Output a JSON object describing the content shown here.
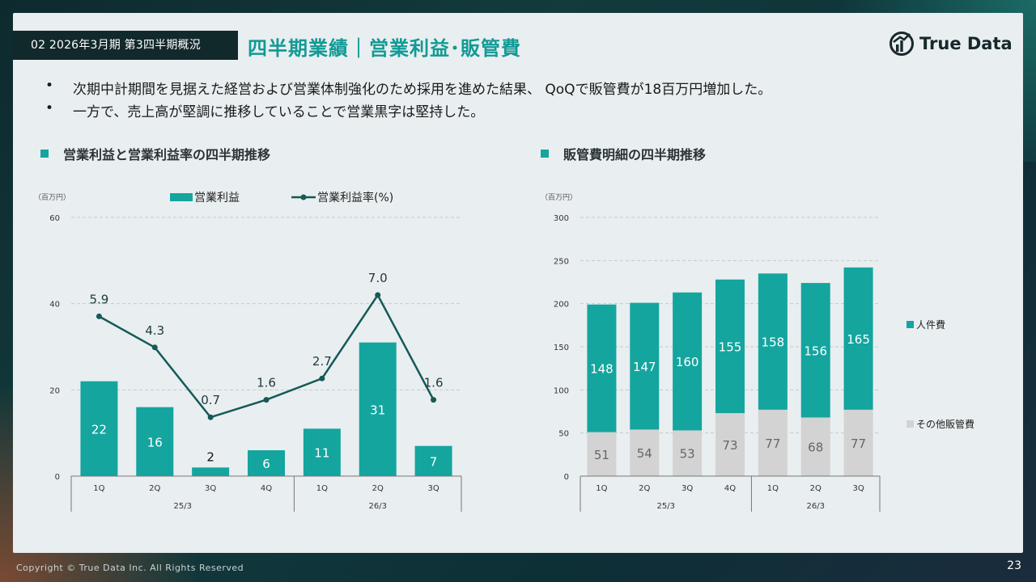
{
  "section_tag": "02 2026年3月期 第3四半期概況",
  "page_title": "四半期業績｜営業利益･販管費",
  "logo": {
    "text": "True Data"
  },
  "bullets": [
    "次期中計期間を見据えた経営および営業体制強化のため採用を進めた結果、 QoQで販管費が18百万円増加した。",
    "一方で、売上高が堅調に推移していることで営業黒字は堅持した。"
  ],
  "bullet_marker": "•",
  "colors": {
    "teal": "#14a59f",
    "line": "#155a57",
    "grey": "#d3d3d3",
    "title_teal": "#119a95"
  },
  "footer": {
    "copyright": "Copyright © True Data Inc. All Rights Reserved",
    "page_number": "23"
  },
  "chart_data": [
    {
      "type": "bar+line",
      "title": "営業利益と営業利益率の四半期推移",
      "unit_label": "（百万円）",
      "categories": [
        "1Q",
        "2Q",
        "3Q",
        "4Q",
        "1Q",
        "2Q",
        "3Q"
      ],
      "groups": [
        {
          "label": "25/3",
          "count": 4
        },
        {
          "label": "26/3",
          "count": 3
        }
      ],
      "series": [
        {
          "name": "営業利益",
          "type": "bar",
          "values": [
            22,
            16,
            2,
            6,
            11,
            31,
            7
          ]
        },
        {
          "name": "営業利益率(%)",
          "type": "line",
          "values": [
            5.9,
            4.3,
            0.7,
            1.6,
            2.7,
            7.0,
            1.6
          ]
        }
      ],
      "ylim": [
        0,
        60
      ],
      "yticks": [
        0,
        20,
        40,
        60
      ],
      "legend_position": "top"
    },
    {
      "type": "stacked-bar",
      "title": "販管費明細の四半期推移",
      "unit_label": "（百万円）",
      "categories": [
        "1Q",
        "2Q",
        "3Q",
        "4Q",
        "1Q",
        "2Q",
        "3Q"
      ],
      "groups": [
        {
          "label": "25/3",
          "count": 4
        },
        {
          "label": "26/3",
          "count": 3
        }
      ],
      "series": [
        {
          "name": "その他販管費",
          "values": [
            51,
            54,
            53,
            73,
            77,
            68,
            77
          ]
        },
        {
          "name": "人件費",
          "values": [
            148,
            147,
            160,
            155,
            158,
            156,
            165
          ]
        }
      ],
      "ylim": [
        0,
        300
      ],
      "yticks": [
        0,
        50,
        100,
        150,
        200,
        250,
        300
      ],
      "legend_position": "right"
    }
  ]
}
